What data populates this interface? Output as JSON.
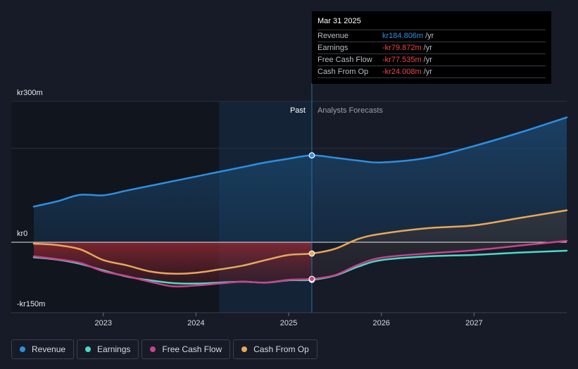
{
  "chart_data": {
    "type": "line",
    "y_unit_label_top": "kr300m",
    "y_unit_label_zero": "kr0",
    "y_unit_label_bottom": "-kr150m",
    "ylim": [
      -150,
      300
    ],
    "x_ticks": [
      "2023",
      "2024",
      "2025",
      "2026",
      "2027"
    ],
    "x_tick_values": [
      2023.0,
      2024.0,
      2025.0,
      2026.0,
      2027.0
    ],
    "xlim": [
      2022.25,
      2028.0
    ],
    "past_label": "Past",
    "forecast_label": "Analysts Forecasts",
    "split_x": 2025.25,
    "past_shade_start_x": 2024.25,
    "series": [
      {
        "name": "Revenue",
        "color": "#2d8fe0",
        "values": [
          [
            2022.25,
            76
          ],
          [
            2022.5,
            87
          ],
          [
            2022.75,
            101
          ],
          [
            2023.0,
            100
          ],
          [
            2023.25,
            110
          ],
          [
            2023.5,
            120
          ],
          [
            2023.75,
            130
          ],
          [
            2024.0,
            140
          ],
          [
            2024.25,
            150
          ],
          [
            2024.5,
            160
          ],
          [
            2024.75,
            170
          ],
          [
            2025.0,
            178
          ],
          [
            2025.25,
            185
          ],
          [
            2025.5,
            180
          ],
          [
            2025.75,
            174
          ],
          [
            2026.0,
            170
          ],
          [
            2026.5,
            180
          ],
          [
            2027.0,
            205
          ],
          [
            2027.5,
            234
          ],
          [
            2028.0,
            266
          ]
        ]
      },
      {
        "name": "Earnings",
        "color": "#4dd9c8",
        "values": [
          [
            2022.25,
            -32
          ],
          [
            2022.5,
            -37
          ],
          [
            2022.75,
            -46
          ],
          [
            2023.0,
            -60
          ],
          [
            2023.25,
            -73
          ],
          [
            2023.5,
            -81
          ],
          [
            2023.75,
            -87
          ],
          [
            2024.0,
            -88
          ],
          [
            2024.25,
            -86
          ],
          [
            2024.5,
            -84
          ],
          [
            2024.75,
            -86
          ],
          [
            2025.0,
            -81
          ],
          [
            2025.25,
            -80
          ],
          [
            2025.5,
            -71
          ],
          [
            2025.75,
            -52
          ],
          [
            2026.0,
            -38
          ],
          [
            2026.5,
            -30
          ],
          [
            2027.0,
            -27
          ],
          [
            2027.5,
            -22
          ],
          [
            2028.0,
            -18
          ]
        ]
      },
      {
        "name": "Free Cash Flow",
        "color": "#c9438b",
        "values": [
          [
            2022.25,
            -30
          ],
          [
            2022.5,
            -36
          ],
          [
            2022.75,
            -44
          ],
          [
            2023.0,
            -62
          ],
          [
            2023.25,
            -72
          ],
          [
            2023.5,
            -84
          ],
          [
            2023.75,
            -94
          ],
          [
            2024.0,
            -92
          ],
          [
            2024.25,
            -88
          ],
          [
            2024.5,
            -84
          ],
          [
            2024.75,
            -86
          ],
          [
            2025.0,
            -80
          ],
          [
            2025.25,
            -78
          ],
          [
            2025.5,
            -70
          ],
          [
            2025.75,
            -48
          ],
          [
            2026.0,
            -33
          ],
          [
            2026.5,
            -24
          ],
          [
            2027.0,
            -17
          ],
          [
            2027.5,
            -7
          ],
          [
            2028.0,
            3
          ]
        ]
      },
      {
        "name": "Cash From Op",
        "color": "#e8a85a",
        "values": [
          [
            2022.25,
            -3
          ],
          [
            2022.5,
            -6
          ],
          [
            2022.75,
            -15
          ],
          [
            2023.0,
            -38
          ],
          [
            2023.25,
            -49
          ],
          [
            2023.5,
            -62
          ],
          [
            2023.75,
            -67
          ],
          [
            2024.0,
            -65
          ],
          [
            2024.25,
            -58
          ],
          [
            2024.5,
            -50
          ],
          [
            2024.75,
            -38
          ],
          [
            2025.0,
            -27
          ],
          [
            2025.25,
            -24
          ],
          [
            2025.5,
            -14
          ],
          [
            2025.75,
            7
          ],
          [
            2026.0,
            18
          ],
          [
            2026.5,
            30
          ],
          [
            2027.0,
            36
          ],
          [
            2027.5,
            52
          ],
          [
            2028.0,
            68
          ]
        ]
      }
    ]
  },
  "tooltip": {
    "date": "Mar 31 2025",
    "rows": [
      {
        "name": "Revenue",
        "value": "kr184.806m",
        "unit": "/yr",
        "color": "#2d8fe0"
      },
      {
        "name": "Earnings",
        "value": "-kr79.872m",
        "unit": "/yr",
        "color": "#f0454a"
      },
      {
        "name": "Free Cash Flow",
        "value": "-kr77.535m",
        "unit": "/yr",
        "color": "#f0454a"
      },
      {
        "name": "Cash From Op",
        "value": "-kr24.008m",
        "unit": "/yr",
        "color": "#f0454a"
      }
    ]
  },
  "legend": [
    {
      "label": "Revenue",
      "color": "#2d8fe0"
    },
    {
      "label": "Earnings",
      "color": "#4dd9c8"
    },
    {
      "label": "Free Cash Flow",
      "color": "#c9438b"
    },
    {
      "label": "Cash From Op",
      "color": "#e8a85a"
    }
  ]
}
